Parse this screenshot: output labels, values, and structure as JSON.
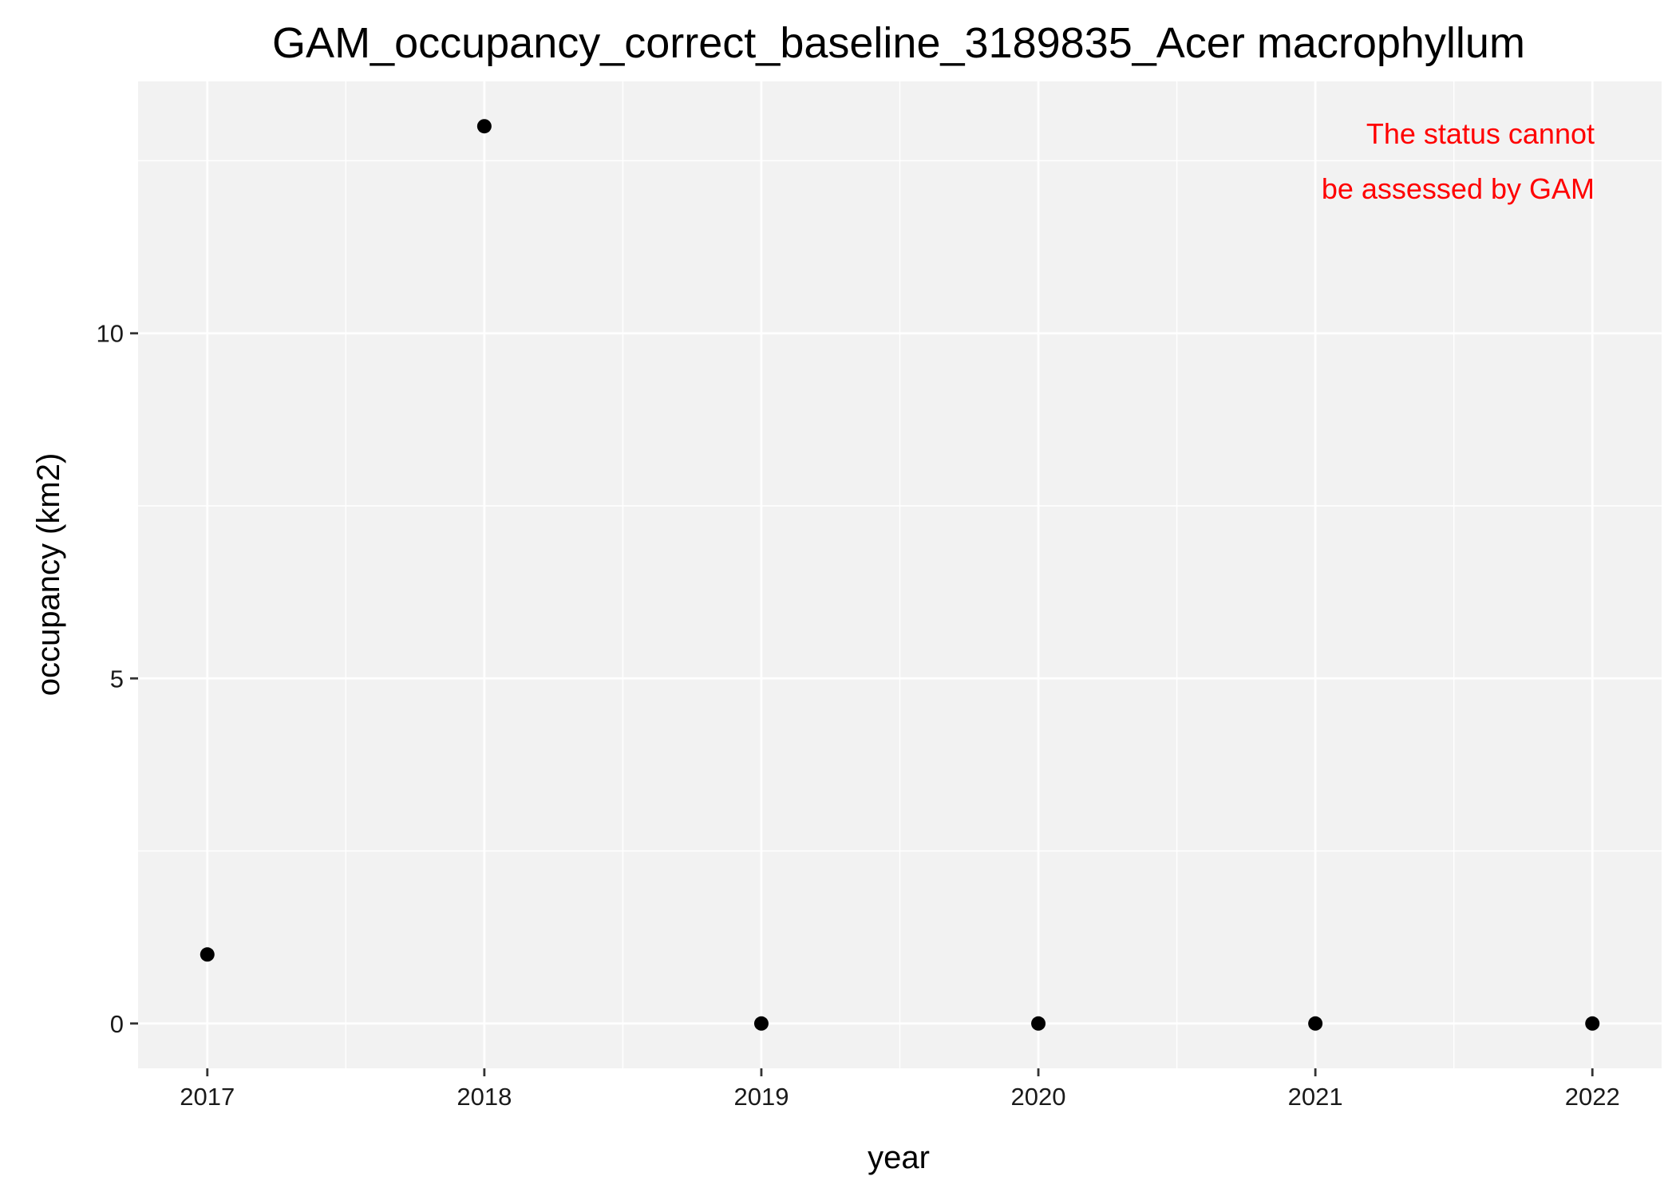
{
  "chart_data": {
    "type": "scatter",
    "title": "GAM_occupancy_correct_baseline_3189835_Acer macrophyllum",
    "xlabel": "year",
    "ylabel": "occupancy (km2)",
    "x": [
      2017,
      2018,
      2019,
      2020,
      2021,
      2022
    ],
    "y": [
      1,
      13,
      0,
      0,
      0,
      0
    ],
    "xlim": [
      2016.75,
      2022.25
    ],
    "ylim": [
      -0.65,
      13.65
    ],
    "x_ticks": [
      2017,
      2018,
      2019,
      2020,
      2021,
      2022
    ],
    "x_tick_labels": [
      "2017",
      "2018",
      "2019",
      "2020",
      "2021",
      "2022"
    ],
    "y_ticks": [
      0,
      5,
      10
    ],
    "y_tick_labels": [
      "0",
      "5",
      "10"
    ],
    "grid": true,
    "legend": "none",
    "annotation": {
      "lines": [
        "The status cannot",
        "be assessed by GAM"
      ],
      "color": "#ff0000",
      "placement": "top-right"
    },
    "colors": {
      "panel_background": "#f2f2f2",
      "grid": "#ffffff",
      "point": "#000000"
    }
  }
}
